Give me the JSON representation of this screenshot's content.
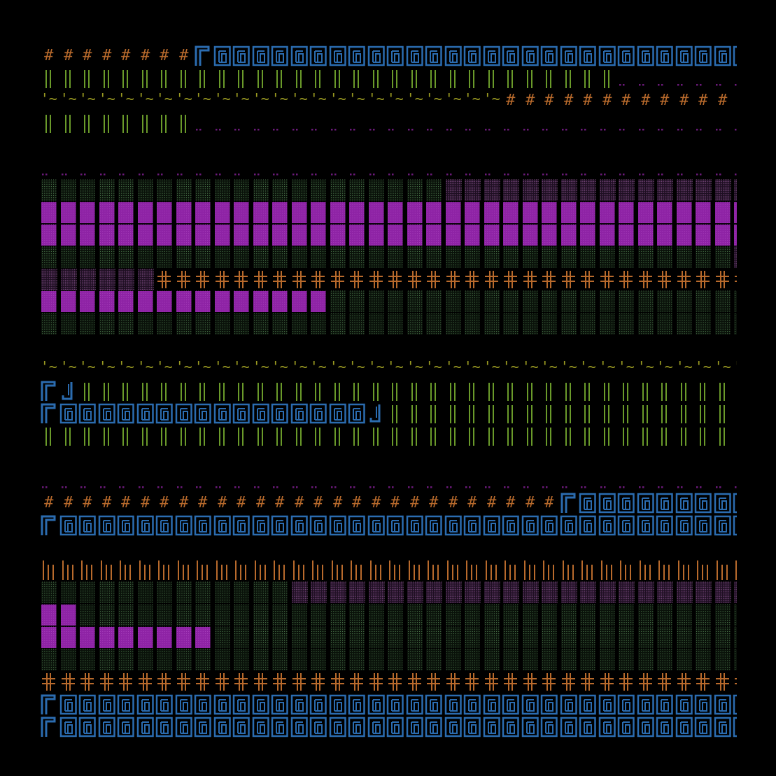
{
  "screen": {
    "background": "#000000"
  },
  "legend": [
    {
      "key": "H",
      "name": "hash-floor",
      "glyph": "#",
      "color": "#b86a2c"
    },
    {
      "key": "B",
      "name": "blue-wall-tile",
      "glyph": "",
      "color": "#2b6cb0"
    },
    {
      "key": "C",
      "name": "blue-wall-corner",
      "glyph": "",
      "color": "#2b6cb0"
    },
    {
      "key": "E",
      "name": "blue-wall-end",
      "glyph": "",
      "color": "#2b6cb0"
    },
    {
      "key": "|",
      "name": "green-double-bar",
      "glyph": "",
      "color": "#6a9a2a"
    },
    {
      "key": "o",
      "name": "purple-dots",
      "glyph": "",
      "color": "#6b1a7a"
    },
    {
      "key": "~",
      "name": "water-tilde",
      "glyph": "~",
      "color": "#9a9a22"
    },
    {
      "key": "g",
      "name": "green-stipple",
      "glyph": "",
      "color": "#2e4a2e"
    },
    {
      "key": "q",
      "name": "purple-stipple",
      "glyph": "",
      "color": "#4a2a4e"
    },
    {
      "key": "P",
      "name": "magenta-block",
      "glyph": "",
      "color": "#8e23a5"
    },
    {
      "key": "+",
      "name": "orange-cross",
      "glyph": "",
      "color": "#b86a2c"
    },
    {
      "key": "I",
      "name": "orange-pillar",
      "glyph": "",
      "color": "#b86a2c"
    },
    {
      "key": ".",
      "name": "empty",
      "glyph": "",
      "color": "#000000"
    }
  ],
  "rows": [
    "HHHHHHHHCBBBBBBBBBBBBBBBBBBBBBBBBBBBBB",
    "||||||||||||||||||||||||||||||oooooooo",
    "~~~~~~~~~~~~~~~~~~~~~~~~HHHHHHHHHHHHHH",
    "||||||||oooooooooooooooooooooooooooooo",
    "......................................",
    "oooooooooooooooooooooooooooooooooooooo",
    "gggggggggggggggggggggqqqqqqqqqqqqqqqqq",
    "PPPPPPPPPPPPPPPPPPPPPPPPPPPPPPPPPPPPPP",
    "PPPPPPPPPPPPPPPPPPPPPPPPPPPPPPPPPPPPPg",
    "ggggggggggggggggggggggggggggggggggggqq",
    "qqqqqq++++++++++++++++++++++++++++++++",
    "PPPPPPPPPPPPPPPggggggggggggggggggggggg",
    "gggggggggggggggggggggggggggggggggggggg",
    "......................................",
    "~~~~~~~~~~~~~~~~~~~~~~~~~~~~~~~~~~~~~~",
    "CE||||||||||||||||||||||||||||||||||||",
    "CBBBBBBBBBBBBBBBBE||||||||||||||||||||",
    "|||||||||||||||||||||||||||||||||||||.",
    "......................................",
    "ooooooooooooooooooooooooooooooooooooo.",
    "HHHHHHHHHHHHHHHHHHHHHHHHHHHCBBBBBBBBBB",
    "CBBBBBBBBBBBBBBBBBBBBBBBBBBBBBBBBBBBBB",
    "......................................",
    "IIIIIIIIIIIIIIIIIIIIIIIIIIIIIIIIIIIIII",
    "gggggggggggggqqqqqqqqqqqqqqqqqqqqqqqqq",
    "PPgggggggggggggggggggggggggggggggggggg",
    "PPPPPPPPPggggggggggggggggggggggggggggg",
    "gggggggggggggggggggggggggggggggggggggg",
    "++++++++++++++++++++++++++++++++++++++",
    "CBBBBBBBBBBBBBBBBBBBBBBBBBBBBBBBBBBBBB",
    "CBBBBBBBBBBBBBBBBBBBBBBBBBBBBBBBBBBBBB"
  ]
}
